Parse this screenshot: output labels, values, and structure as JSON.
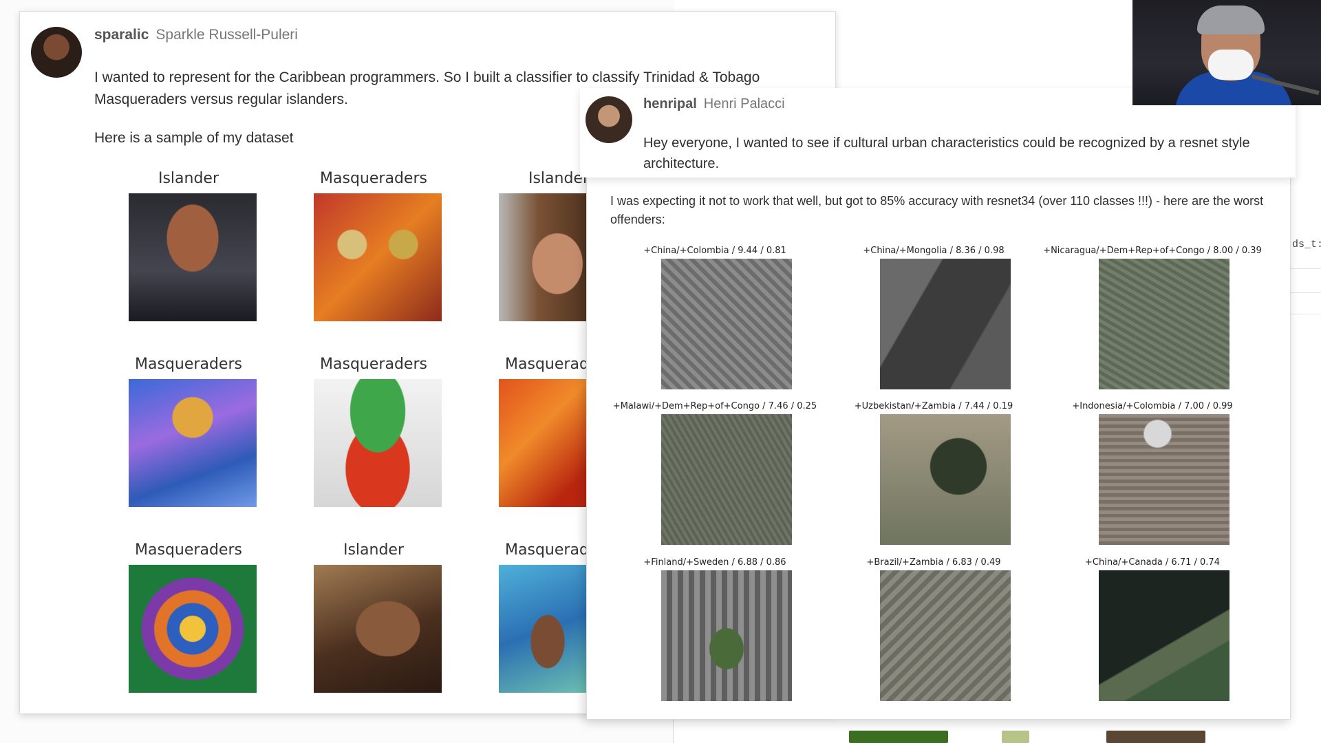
{
  "post1": {
    "username": "sparalic",
    "fullname": "Sparkle Russell-Puleri",
    "text1": "I wanted to represent for the Caribbean programmers. So I built a classifier to classify Trinidad & Tobago Masqueraders versus regular islanders.",
    "text2": "Here is a sample of my dataset",
    "dataset": [
      {
        "label": "Islander"
      },
      {
        "label": "Masqueraders"
      },
      {
        "label": "Islander"
      },
      {
        "label": "Masqueraders"
      },
      {
        "label": "Masqueraders"
      },
      {
        "label": "Masqueraders"
      },
      {
        "label": "Masqueraders"
      },
      {
        "label": "Islander"
      },
      {
        "label": "Masqueraders"
      }
    ]
  },
  "post2": {
    "username": "henripal",
    "fullname": "Henri Palacci",
    "text1": "Hey everyone, I wanted to see if cultural urban characteristics could be recognized by a resnet style architecture.",
    "text2": "I was expecting it not to work that well, but got to 85% accuracy with resnet34 (over 110 classes !!!) - here are the worst offenders:",
    "offenders": [
      {
        "label": "+China/+Colombia / 9.44 / 0.81"
      },
      {
        "label": "+China/+Mongolia / 8.36 / 0.98"
      },
      {
        "label": "+Nicaragua/+Dem+Rep+of+Congo / 8.00 / 0.39"
      },
      {
        "label": "+Malawi/+Dem+Rep+of+Congo / 7.46 / 0.25"
      },
      {
        "label": "+Uzbekistan/+Zambia / 7.44 / 0.19"
      },
      {
        "label": "+Indonesia/+Colombia / 7.00 / 0.99"
      },
      {
        "label": "+Finland/+Sweden / 6.88 / 0.86"
      },
      {
        "label": "+Brazil/+Zambia / 6.83 / 0.49"
      },
      {
        "label": "+China/+Canada / 6.71 / 0.74"
      }
    ]
  },
  "background": {
    "code_snippet": "ds_t:"
  }
}
